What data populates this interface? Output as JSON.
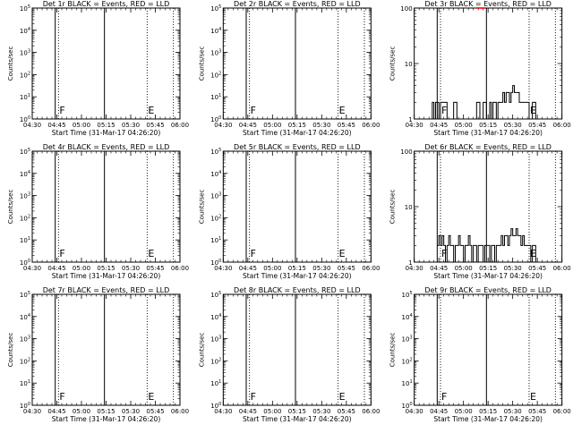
{
  "xlabel": "Start Time (31-Mar-17 04:26:20)",
  "ylabel": "Counts/sec",
  "x_tick_labels": [
    "04:30",
    "04:45",
    "05:00",
    "05:15",
    "05:30",
    "05:45",
    "06:00"
  ],
  "line_colors": {
    "events": "#000000",
    "lld": "#ff0000",
    "axes": "#000000"
  },
  "charts": [
    {
      "title": "Det 1r BLACK = Events, RED = LLD",
      "type": "line",
      "yscale": "log",
      "ylim": [
        1,
        100000.0
      ],
      "y_tick_labels": [
        "10^0",
        "10^1",
        "10^2",
        "10^3",
        "10^4",
        "10^5"
      ],
      "markers": [
        {
          "x": "04:46",
          "label": "F"
        },
        {
          "x": "05:40",
          "label": "E"
        }
      ],
      "solid_lines": [
        "04:44",
        "05:14"
      ],
      "dotted_lines": [
        "04:46",
        "05:40",
        "05:56"
      ],
      "series": []
    },
    {
      "title": "Det 2r BLACK = Events, RED = LLD",
      "type": "line",
      "yscale": "log",
      "ylim": [
        1,
        100000.0
      ],
      "y_tick_labels": [
        "10^0",
        "10^1",
        "10^2",
        "10^3",
        "10^4",
        "10^5"
      ],
      "markers": [
        {
          "x": "04:46",
          "label": "F"
        },
        {
          "x": "05:40",
          "label": "E"
        }
      ],
      "solid_lines": [
        "04:44",
        "05:14"
      ],
      "dotted_lines": [
        "04:46",
        "05:40",
        "05:56"
      ],
      "series": []
    },
    {
      "title": "Det 3r BLACK = Events, RED = LLD",
      "type": "line",
      "yscale": "log",
      "ylim": [
        1,
        100
      ],
      "y_tick_labels": [
        "1",
        "10",
        "100"
      ],
      "markers": [
        {
          "x": "04:46",
          "label": "F"
        },
        {
          "x": "05:40",
          "label": "E"
        }
      ],
      "solid_lines": [
        "04:44",
        "05:14"
      ],
      "dotted_lines": [
        "04:46",
        "05:40",
        "05:56"
      ],
      "series": [
        {
          "color": "#000000",
          "x": [
            "04:40",
            "04:41",
            "04:42",
            "04:43",
            "04:44",
            "04:45",
            "04:46",
            "04:47",
            "04:50",
            "04:52",
            "04:54",
            "04:56",
            "04:58",
            "05:00",
            "05:02",
            "05:04",
            "05:06",
            "05:08",
            "05:10",
            "05:12",
            "05:14",
            "05:16",
            "05:17",
            "05:18",
            "05:19",
            "05:20",
            "05:21",
            "05:22",
            "05:23",
            "05:24",
            "05:25",
            "05:26",
            "05:27",
            "05:28",
            "05:29",
            "05:30",
            "05:31",
            "05:32",
            "05:33",
            "05:34",
            "05:35",
            "05:36",
            "05:37",
            "05:38",
            "05:39",
            "05:40",
            "05:41",
            "05:42",
            "05:43",
            "05:44",
            "05:45"
          ],
          "y": [
            1,
            2,
            1,
            2,
            2,
            1,
            2,
            2,
            1,
            1,
            2,
            1,
            1,
            1,
            1,
            1,
            1,
            2,
            1,
            2,
            1,
            2,
            1,
            2,
            2,
            1,
            2,
            2,
            2,
            3,
            2,
            3,
            3,
            2,
            3,
            4,
            3,
            3,
            3,
            2,
            2,
            2,
            2,
            2,
            2,
            1,
            1,
            2,
            2,
            1,
            1
          ]
        },
        {
          "color": "#ff0000",
          "x": [
            "05:08",
            "05:09",
            "05:10",
            "05:11",
            "05:12"
          ],
          "y": [
            100,
            100,
            100,
            100,
            100
          ]
        }
      ]
    },
    {
      "title": "Det 4r BLACK = Events, RED = LLD",
      "type": "line",
      "yscale": "log",
      "ylim": [
        1,
        100000.0
      ],
      "y_tick_labels": [
        "10^0",
        "10^1",
        "10^2",
        "10^3",
        "10^4",
        "10^5"
      ],
      "markers": [
        {
          "x": "04:46",
          "label": "F"
        },
        {
          "x": "05:40",
          "label": "E"
        }
      ],
      "solid_lines": [
        "04:44",
        "05:14"
      ],
      "dotted_lines": [
        "04:46",
        "05:40",
        "05:56"
      ],
      "series": []
    },
    {
      "title": "Det 5r BLACK = Events, RED = LLD",
      "type": "line",
      "yscale": "log",
      "ylim": [
        1,
        100000.0
      ],
      "y_tick_labels": [
        "10^0",
        "10^1",
        "10^2",
        "10^3",
        "10^4",
        "10^5"
      ],
      "markers": [
        {
          "x": "04:46",
          "label": "F"
        },
        {
          "x": "05:40",
          "label": "E"
        }
      ],
      "solid_lines": [
        "04:44",
        "05:14"
      ],
      "dotted_lines": [
        "04:46",
        "05:40",
        "05:56"
      ],
      "series": []
    },
    {
      "title": "Det 6r BLACK = Events, RED = LLD",
      "type": "line",
      "yscale": "log",
      "ylim": [
        1,
        100
      ],
      "y_tick_labels": [
        "1",
        "10",
        "100"
      ],
      "markers": [
        {
          "x": "04:46",
          "label": "F"
        },
        {
          "x": "05:40",
          "label": "E"
        }
      ],
      "solid_lines": [
        "04:44",
        "05:14"
      ],
      "dotted_lines": [
        "04:46",
        "05:40",
        "05:56"
      ],
      "series": [
        {
          "color": "#000000",
          "x": [
            "04:44",
            "04:45",
            "04:46",
            "04:47",
            "04:48",
            "04:49",
            "04:50",
            "04:51",
            "04:52",
            "04:53",
            "04:54",
            "04:55",
            "04:56",
            "04:57",
            "04:58",
            "04:59",
            "05:00",
            "05:01",
            "05:02",
            "05:03",
            "05:04",
            "05:05",
            "05:06",
            "05:07",
            "05:08",
            "05:09",
            "05:10",
            "05:11",
            "05:12",
            "05:13",
            "05:14",
            "05:15",
            "05:16",
            "05:17",
            "05:18",
            "05:19",
            "05:20",
            "05:21",
            "05:22",
            "05:23",
            "05:24",
            "05:25",
            "05:26",
            "05:27",
            "05:28",
            "05:29",
            "05:30",
            "05:31",
            "05:32",
            "05:33",
            "05:34",
            "05:35",
            "05:36",
            "05:37",
            "05:38",
            "05:39",
            "05:40",
            "05:41",
            "05:42",
            "05:43",
            "05:44",
            "05:45"
          ],
          "y": [
            2,
            3,
            2,
            3,
            2,
            1,
            2,
            3,
            2,
            2,
            1,
            2,
            2,
            3,
            2,
            2,
            1,
            2,
            2,
            3,
            2,
            1,
            2,
            2,
            1,
            2,
            2,
            2,
            1,
            2,
            2,
            2,
            1,
            2,
            2,
            1,
            2,
            2,
            2,
            3,
            2,
            3,
            3,
            2,
            3,
            4,
            3,
            3,
            4,
            3,
            3,
            2,
            3,
            2,
            2,
            2,
            2,
            1,
            2,
            2,
            1,
            1
          ]
        }
      ]
    },
    {
      "title": "Det 7r BLACK = Events, RED = LLD",
      "type": "line",
      "yscale": "log",
      "ylim": [
        1,
        100000.0
      ],
      "y_tick_labels": [
        "10^0",
        "10^1",
        "10^2",
        "10^3",
        "10^4",
        "10^5"
      ],
      "markers": [
        {
          "x": "04:46",
          "label": "F"
        },
        {
          "x": "05:40",
          "label": "E"
        }
      ],
      "solid_lines": [
        "04:44",
        "05:14"
      ],
      "dotted_lines": [
        "04:46",
        "05:40",
        "05:56"
      ],
      "series": []
    },
    {
      "title": "Det 8r BLACK = Events, RED = LLD",
      "type": "line",
      "yscale": "log",
      "ylim": [
        1,
        100000.0
      ],
      "y_tick_labels": [
        "10^0",
        "10^1",
        "10^2",
        "10^3",
        "10^4",
        "10^5"
      ],
      "markers": [
        {
          "x": "04:46",
          "label": "F"
        },
        {
          "x": "05:40",
          "label": "E"
        }
      ],
      "solid_lines": [
        "04:44",
        "05:14"
      ],
      "dotted_lines": [
        "04:46",
        "05:40",
        "05:56"
      ],
      "series": []
    },
    {
      "title": "Det 9r BLACK = Events, RED = LLD",
      "type": "line",
      "yscale": "log",
      "ylim": [
        1,
        100000.0
      ],
      "y_tick_labels": [
        "10^0",
        "10^1",
        "10^2",
        "10^3",
        "10^4",
        "10^5"
      ],
      "markers": [
        {
          "x": "04:46",
          "label": "F"
        },
        {
          "x": "05:40",
          "label": "E"
        }
      ],
      "solid_lines": [
        "04:44",
        "05:14"
      ],
      "dotted_lines": [
        "04:46",
        "05:40",
        "05:56"
      ],
      "series": []
    }
  ]
}
